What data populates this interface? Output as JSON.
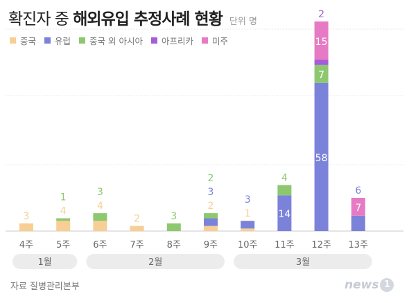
{
  "title": {
    "prefix": "확진자 중",
    "main": "해외유입 추정사례 현황",
    "unit": "단위 명"
  },
  "colors": {
    "china": "#f7cf95",
    "europe": "#7b82d9",
    "asia_other": "#8dc86f",
    "africa": "#a45ed9",
    "americas": "#e77ac4",
    "gridline": "#e9e9e9",
    "axis": "#c9c9c9",
    "month_band": "#ececec"
  },
  "source": "자료 질병관리본부",
  "logo": {
    "text": "news",
    "badge": "1"
  },
  "chart_data": {
    "type": "bar",
    "stacked": true,
    "categories": [
      "4주",
      "5주",
      "6주",
      "7주",
      "8주",
      "9주",
      "10주",
      "11주",
      "12주",
      "13주"
    ],
    "series": [
      {
        "name": "중국",
        "color_key": "china",
        "values": [
          3,
          4,
          4,
          2,
          0,
          2,
          1,
          0,
          0,
          0
        ]
      },
      {
        "name": "유럽",
        "color_key": "europe",
        "values": [
          0,
          0,
          0,
          0,
          0,
          3,
          3,
          14,
          58,
          6
        ]
      },
      {
        "name": "중국 외 아시아",
        "color_key": "asia_other",
        "values": [
          0,
          1,
          3,
          0,
          3,
          2,
          0,
          4,
          7,
          0
        ]
      },
      {
        "name": "아프리카",
        "color_key": "africa",
        "values": [
          0,
          0,
          0,
          0,
          0,
          0,
          0,
          0,
          2,
          0
        ]
      },
      {
        "name": "미주",
        "color_key": "americas",
        "values": [
          0,
          0,
          0,
          0,
          0,
          0,
          0,
          0,
          15,
          7
        ]
      }
    ],
    "months": [
      {
        "label": "1월",
        "from": 0,
        "to": 1
      },
      {
        "label": "2월",
        "from": 2,
        "to": 5
      },
      {
        "label": "3월",
        "from": 6,
        "to": 9
      }
    ],
    "ylim": [
      0,
      85
    ],
    "grid": true,
    "legend_position": "top-left",
    "xlabel": "",
    "ylabel": ""
  }
}
